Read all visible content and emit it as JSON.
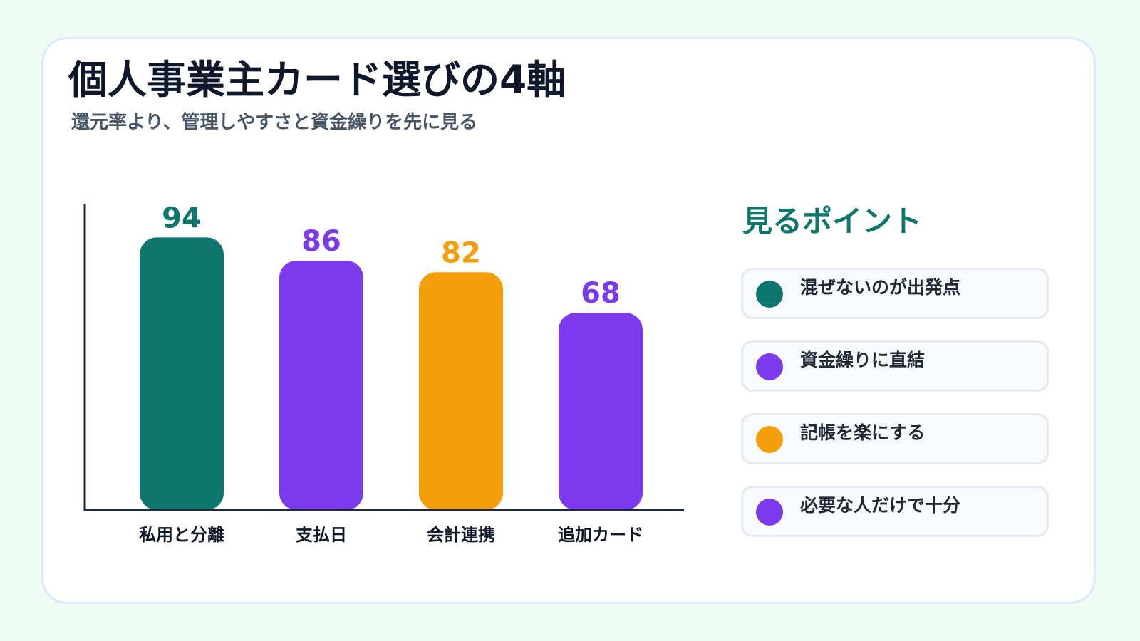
{
  "header": {
    "title": "個人事業主カード選びの4軸",
    "subtitle": "還元率より、管理しやすさと資金繰りを先に見る"
  },
  "chart_data": {
    "type": "bar",
    "categories": [
      "私用と分離",
      "支払日",
      "会計連携",
      "追加カード"
    ],
    "values": [
      94,
      86,
      82,
      68
    ],
    "bar_colors": [
      "#0f766e",
      "#7c3aed",
      "#f59e0b",
      "#7c3aed"
    ],
    "ylim": [
      0,
      100
    ],
    "grid": false,
    "axis_color": "#1e293b"
  },
  "points_panel": {
    "title": "見るポイント",
    "items": [
      {
        "label": "混ぜないのが出発点",
        "color": "#0f766e"
      },
      {
        "label": "資金繰りに直結",
        "color": "#7c3aed"
      },
      {
        "label": "記帳を楽にする",
        "color": "#f59e0b"
      },
      {
        "label": "必要な人だけで十分",
        "color": "#7c3aed"
      }
    ]
  }
}
